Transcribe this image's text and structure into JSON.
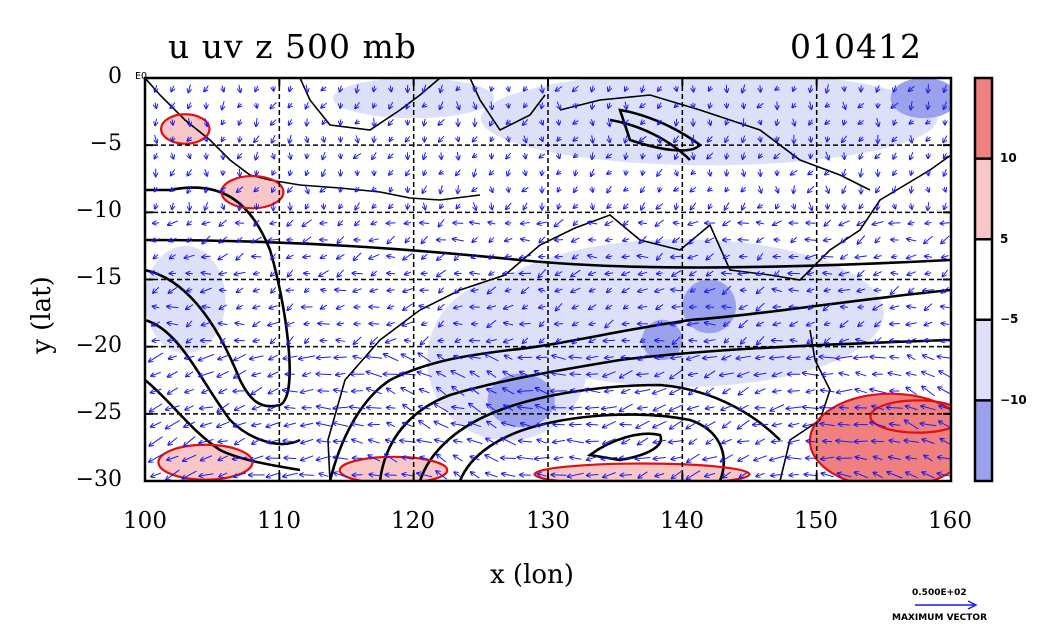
{
  "figure": {
    "title_left": "u uv z 500 mb",
    "title_right": "010412",
    "equator_label": "EQ",
    "max_vector_value": "0.500E+02",
    "max_vector_label": "MAXIMUM VECTOR"
  },
  "chart_data": {
    "type": "heatmap",
    "title": "u uv z 500 mb",
    "date_label": "010412",
    "xlabel": "x (lon)",
    "ylabel": "y (lat)",
    "xlim": [
      100,
      160
    ],
    "ylim": [
      -30,
      0
    ],
    "xticks": [
      100,
      110,
      120,
      130,
      140,
      150,
      160
    ],
    "yticks": [
      0,
      -5,
      -10,
      -15,
      -20,
      -25,
      -30
    ],
    "xtick_labels": [
      "100",
      "110",
      "120",
      "130",
      "140",
      "150",
      "160"
    ],
    "ytick_labels": [
      "0",
      "−5",
      "−10",
      "−15",
      "−20",
      "−25",
      "−30"
    ],
    "grid": true,
    "colorbar": {
      "tick_labels": [
        "10",
        "5",
        "−5",
        "−10"
      ],
      "levels": [
        10,
        5,
        -5,
        -10
      ],
      "colors": [
        "#f08080",
        "#f8c6c6",
        "#ffffff",
        "#dde0f8",
        "#9aa2ee"
      ]
    },
    "positive_u_regions": [
      {
        "center": [
          103,
          -3.8
        ],
        "extent": [
          1.8,
          1.1
        ],
        "level": 5
      },
      {
        "center": [
          108,
          -8.5
        ],
        "extent": [
          2.3,
          1.2
        ],
        "level": 5
      },
      {
        "center": [
          104.5,
          -28.6
        ],
        "extent": [
          3.5,
          1.3
        ],
        "level": 5
      },
      {
        "center": [
          118.5,
          -29.2
        ],
        "extent": [
          4,
          1
        ],
        "level": 5
      },
      {
        "center": [
          137,
          -29.5
        ],
        "extent": [
          8,
          0.8
        ],
        "level": 5
      },
      {
        "center": [
          155.5,
          -27
        ],
        "extent": [
          6,
          3.5
        ],
        "level": 10
      },
      {
        "center": [
          157.5,
          -25.2
        ],
        "extent": [
          3.5,
          1.2
        ],
        "level": 10
      }
    ],
    "negative_u_regions": [
      {
        "center": [
          142,
          -3
        ],
        "extent": [
          17,
          3.5
        ],
        "level": -5
      },
      {
        "center": [
          158,
          -1.5
        ],
        "extent": [
          2.5,
          1.5
        ],
        "level": -10
      },
      {
        "center": [
          120,
          -1.5
        ],
        "extent": [
          6,
          1.5
        ],
        "level": -5
      },
      {
        "center": [
          140,
          -17.5
        ],
        "extent": [
          15,
          5.5
        ],
        "level": -5
      },
      {
        "center": [
          103,
          -16.5
        ],
        "extent": [
          3,
          4
        ],
        "level": -5
      },
      {
        "center": [
          127,
          -21
        ],
        "extent": [
          6,
          6
        ],
        "level": -5
      },
      {
        "center": [
          128,
          -24
        ],
        "extent": [
          2.5,
          2
        ],
        "level": -10
      },
      {
        "center": [
          142,
          -17
        ],
        "extent": [
          2,
          2
        ],
        "level": -10
      },
      {
        "center": [
          138.5,
          -19.5
        ],
        "extent": [
          1.5,
          1.5
        ],
        "level": -10
      }
    ],
    "wind_vectors": {
      "color": "#1c1cf0",
      "max_vector": 50
    }
  }
}
